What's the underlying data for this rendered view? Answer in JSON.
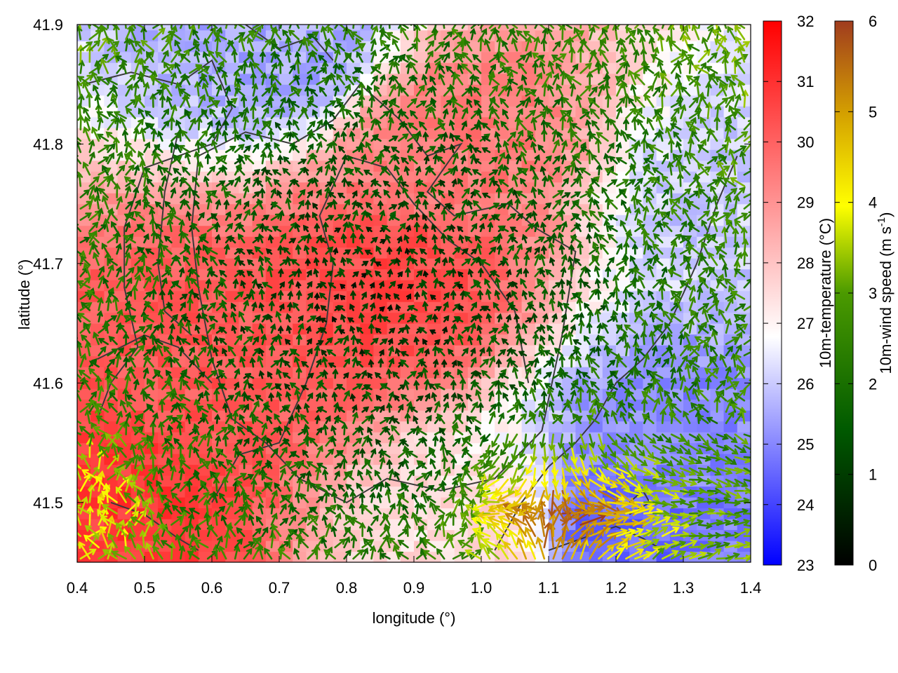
{
  "chart_data": {
    "type": "heatmap",
    "title": "",
    "xlabel": "longitude (°)",
    "ylabel": "latitude (°)",
    "xlim": [
      0.4,
      1.4
    ],
    "ylim": [
      41.45,
      41.9
    ],
    "xticks": [
      "0.4",
      "0.5",
      "0.6",
      "0.7",
      "0.8",
      "0.9",
      "1.0",
      "1.1",
      "1.2",
      "1.3",
      "1.4"
    ],
    "yticks": [
      "41.5",
      "41.6",
      "41.7",
      "41.8",
      "41.9"
    ],
    "grid": false,
    "overlays": [
      "10m-wind vectors colored by speed",
      "dark gray coastline/boundary contours"
    ],
    "temperature_colorbar": {
      "label": "10m-temperature (°C)",
      "range": [
        23,
        32
      ],
      "ticks": [
        "23",
        "24",
        "25",
        "26",
        "27",
        "28",
        "29",
        "30",
        "31",
        "32"
      ],
      "colors": [
        "#0000ff",
        "#ffffff",
        "#ff0000"
      ]
    },
    "wind_colorbar": {
      "label": "10m-wind speed (m s-1)",
      "label_main": "10m-wind speed (m s",
      "label_sup": "-1",
      "label_end": ")",
      "range": [
        0,
        6
      ],
      "ticks": [
        "0",
        "1",
        "2",
        "3",
        "4",
        "5",
        "6"
      ],
      "colors": [
        "#000000",
        "#005a00",
        "#4b9a00",
        "#ffff00",
        "#d4a000",
        "#a03c1e"
      ]
    },
    "temperature_field": {
      "description": "mostly warm (29-31 °C) inland, cooler (24-27 °C) toward the southeast corner",
      "regions": [
        {
          "lon": 0.85,
          "lat": 41.68,
          "temp": 30.5
        },
        {
          "lon": 0.45,
          "lat": 41.5,
          "temp": 30.8
        },
        {
          "lon": 0.6,
          "lat": 41.62,
          "temp": 30.2
        },
        {
          "lon": 0.95,
          "lat": 41.8,
          "temp": 29.5
        },
        {
          "lon": 0.7,
          "lat": 41.88,
          "temp": 25.5
        },
        {
          "lon": 1.3,
          "lat": 41.55,
          "temp": 25.0
        },
        {
          "lon": 1.2,
          "lat": 41.48,
          "temp": 24.5
        },
        {
          "lon": 1.38,
          "lat": 41.75,
          "temp": 26.0
        },
        {
          "lon": 1.0,
          "lat": 41.48,
          "temp": 27.5
        }
      ]
    }
  }
}
